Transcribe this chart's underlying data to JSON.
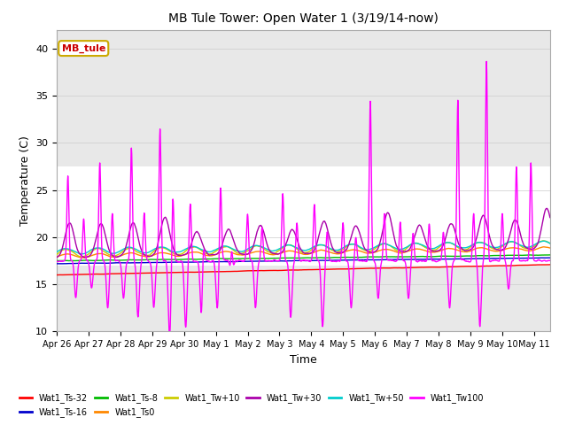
{
  "title": "MB Tule Tower: Open Water 1 (3/19/14-now)",
  "xlabel": "Time",
  "ylabel": "Temperature (C)",
  "ylim": [
    10,
    42
  ],
  "xlim_days": 15.5,
  "background_color": "#ffffff",
  "plot_bg_color": "#e8e8e8",
  "shaded_region": [
    17.0,
    27.5
  ],
  "series": {
    "Wat1_Ts-32": {
      "color": "#ff0000",
      "lw": 1.0
    },
    "Wat1_Ts-16": {
      "color": "#0000cc",
      "lw": 1.0
    },
    "Wat1_Ts-8": {
      "color": "#00bb00",
      "lw": 1.0
    },
    "Wat1_Ts0": {
      "color": "#ff8800",
      "lw": 1.0
    },
    "Wat1_Tw+10": {
      "color": "#cccc00",
      "lw": 1.0
    },
    "Wat1_Tw+30": {
      "color": "#aa00aa",
      "lw": 1.0
    },
    "Wat1_Tw+50": {
      "color": "#00cccc",
      "lw": 1.0
    },
    "Wat1_Tw100": {
      "color": "#ff00ff",
      "lw": 1.0
    }
  },
  "x_tick_labels": [
    "Apr 26",
    "Apr 27",
    "Apr 28",
    "Apr 29",
    "Apr 30",
    "May 1",
    "May 2",
    "May 3",
    "May 4",
    "May 5",
    "May 6",
    "May 7",
    "May 8",
    "May 9",
    "May 10",
    "May 11"
  ],
  "yticks": [
    10,
    15,
    20,
    25,
    30,
    35,
    40
  ],
  "legend_label": "MB_tule",
  "legend_color": "#cc0000",
  "n_points": 1500
}
